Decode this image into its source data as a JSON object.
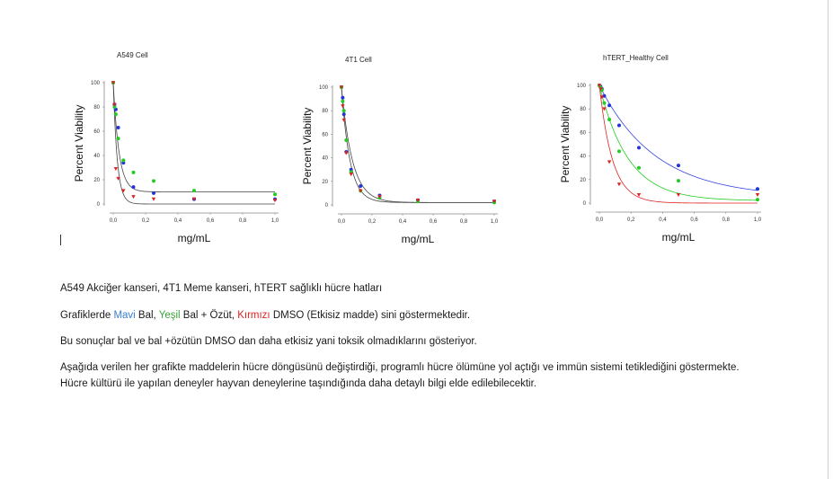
{
  "chart_data": [
    {
      "type": "scatter",
      "title": "A549 Cell",
      "xlabel": "mg/mL",
      "ylabel": "Percent Viability",
      "xlim": [
        0,
        1.0
      ],
      "ylim": [
        0,
        100
      ],
      "xticks": [
        "0,0",
        "0,2",
        "0,4",
        "0,6",
        "0,8",
        "1,0"
      ],
      "yticks": [
        "0",
        "20",
        "40",
        "60",
        "80",
        "100"
      ],
      "series": [
        {
          "color": "#2233dd",
          "marker": "circle",
          "x": [
            0.0,
            0.008,
            0.016,
            0.031,
            0.063,
            0.125,
            0.25,
            0.5,
            1.0
          ],
          "y": [
            100,
            82,
            78,
            63,
            34,
            14,
            9,
            4,
            4
          ]
        },
        {
          "color": "#22cc22",
          "marker": "circle",
          "x": [
            0.0,
            0.008,
            0.016,
            0.031,
            0.063,
            0.125,
            0.25,
            0.5,
            1.0
          ],
          "y": [
            100,
            80,
            74,
            54,
            36,
            26,
            19,
            11,
            8
          ]
        },
        {
          "color": "#dd2222",
          "marker": "triangle",
          "x": [
            0.0,
            0.008,
            0.016,
            0.031,
            0.063,
            0.125,
            0.25,
            0.5,
            1.0
          ],
          "y": [
            100,
            82,
            29,
            21,
            11,
            6,
            4,
            4,
            3
          ]
        }
      ],
      "fits": [
        {
          "color": "#444444",
          "bottom": 10,
          "top": 100,
          "rate": 28
        },
        {
          "color": "#444444",
          "bottom": 0,
          "top": 100,
          "rate": 40
        }
      ]
    },
    {
      "type": "scatter",
      "title": "4T1 Cell",
      "xlabel": "mg/mL",
      "ylabel": "Percent Viability",
      "xlim": [
        0,
        1.0
      ],
      "ylim": [
        0,
        100
      ],
      "xticks": [
        "0,0",
        "0,2",
        "0,4",
        "0,6",
        "0,8",
        "1,0"
      ],
      "yticks": [
        "0",
        "20",
        "40",
        "60",
        "80",
        "100"
      ],
      "series": [
        {
          "color": "#2233dd",
          "marker": "circle",
          "x": [
            0.0,
            0.008,
            0.016,
            0.031,
            0.063,
            0.125,
            0.25,
            0.5,
            1.0
          ],
          "y": [
            100,
            91,
            77,
            45,
            30,
            16,
            8,
            4,
            3
          ]
        },
        {
          "color": "#22cc22",
          "marker": "circle",
          "x": [
            0.0,
            0.008,
            0.016,
            0.031,
            0.063,
            0.125,
            0.25,
            0.5,
            1.0
          ],
          "y": [
            100,
            88,
            80,
            55,
            28,
            12,
            6,
            3,
            2
          ]
        },
        {
          "color": "#dd2222",
          "marker": "triangle",
          "x": [
            0.0,
            0.008,
            0.016,
            0.031,
            0.063,
            0.125,
            0.25,
            0.5,
            1.0
          ],
          "y": [
            100,
            84,
            72,
            44,
            26,
            12,
            7,
            4,
            3
          ]
        }
      ],
      "fits": [
        {
          "color": "#444444",
          "bottom": 2,
          "top": 100,
          "rate": 18
        },
        {
          "color": "#444444",
          "bottom": 2,
          "top": 100,
          "rate": 14
        }
      ]
    },
    {
      "type": "scatter",
      "title": "hTERT_Healthy Cell",
      "xlabel": "mg/mL",
      "ylabel": "Percent Viability",
      "xlim": [
        0,
        1.0
      ],
      "ylim": [
        0,
        100
      ],
      "xticks": [
        "0,0",
        "0,2",
        "0,4",
        "0,6",
        "0,8",
        "1,0"
      ],
      "yticks": [
        "0",
        "20",
        "40",
        "60",
        "80",
        "100"
      ],
      "series": [
        {
          "color": "#2233dd",
          "marker": "circle",
          "x": [
            0.0,
            0.008,
            0.016,
            0.031,
            0.063,
            0.125,
            0.25,
            0.5,
            1.0
          ],
          "y": [
            100,
            99,
            97,
            91,
            83,
            66,
            47,
            32,
            12
          ]
        },
        {
          "color": "#22cc22",
          "marker": "circle",
          "x": [
            0.0,
            0.008,
            0.016,
            0.031,
            0.063,
            0.125,
            0.25,
            0.5,
            1.0
          ],
          "y": [
            100,
            98,
            96,
            85,
            71,
            44,
            30,
            19,
            3
          ]
        },
        {
          "color": "#dd2222",
          "marker": "triangle",
          "x": [
            0.0,
            0.008,
            0.016,
            0.031,
            0.063,
            0.125,
            0.25,
            0.5,
            1.0
          ],
          "y": [
            100,
            97,
            90,
            80,
            35,
            16,
            7,
            7,
            7
          ]
        }
      ],
      "fits": [
        {
          "color": "#3344dd",
          "bottom": 5,
          "top": 100,
          "rate": 2.8
        },
        {
          "color": "#22cc22",
          "bottom": 2,
          "top": 100,
          "rate": 5.5
        },
        {
          "color": "#dd2222",
          "bottom": 0,
          "top": 100,
          "rate": 12
        }
      ]
    }
  ],
  "document": {
    "line1": "A549 Akciğer kanseri, 4T1 Meme kanseri, hTERT sağlıklı hücre hatları",
    "line2_prefix": "Grafiklerde ",
    "line2_blue": "Mavi",
    "line2_mid1": " Bal, ",
    "line2_green": "Yeşil",
    "line2_mid2": " Bal + Özüt, ",
    "line2_red": "Kırmızı",
    "line2_suffix": " DMSO (Etkisiz madde) sini göstermektedir.",
    "line3": "Bu sonuçlar bal ve bal +özütün DMSO dan daha etkisiz yani toksik olmadıklarını gösteriyor.",
    "line4": "Aşağıda verilen her grafikte maddelerin hücre döngüsünü değiştirdiği, programlı hücre ölümüne yol açtığı ve immün sistemi tetiklediğini göstermekte. Hücre kültürü ile yapılan deneyler hayvan deneylerine taşındığında daha detaylı bilgi elde edilebilecektir."
  },
  "colors": {
    "blue_text": "#3a7fcf",
    "green_text": "#3aa53a",
    "red_text": "#e02020"
  }
}
